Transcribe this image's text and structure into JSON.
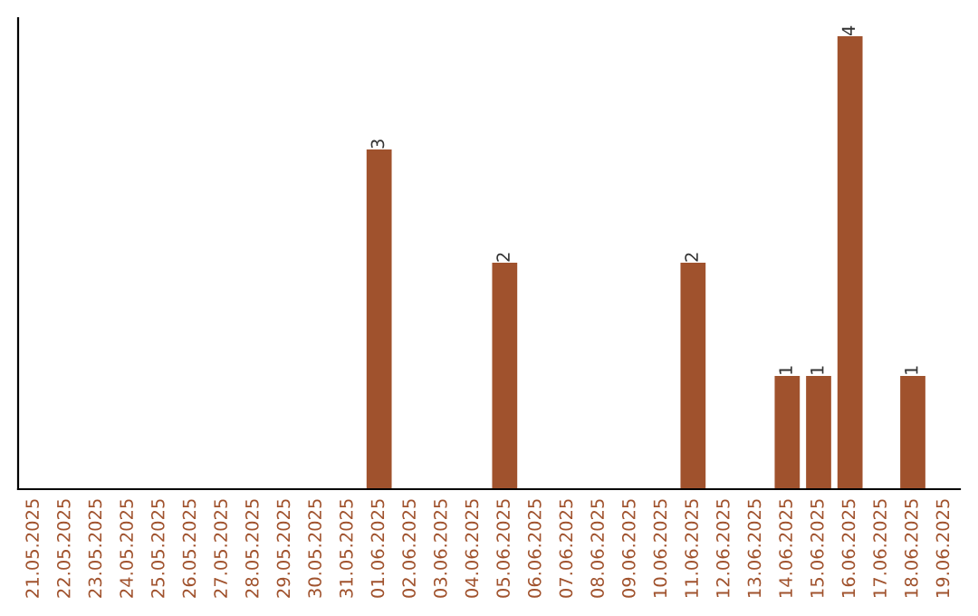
{
  "chart_data": {
    "type": "bar",
    "categories": [
      "21.05.2025",
      "22.05.2025",
      "23.05.2025",
      "24.05.2025",
      "25.05.2025",
      "26.05.2025",
      "27.05.2025",
      "28.05.2025",
      "29.05.2025",
      "30.05.2025",
      "31.05.2025",
      "01.06.2025",
      "02.06.2025",
      "03.06.2025",
      "04.06.2025",
      "05.06.2025",
      "06.06.2025",
      "07.06.2025",
      "08.06.2025",
      "09.06.2025",
      "10.06.2025",
      "11.06.2025",
      "12.06.2025",
      "13.06.2025",
      "14.06.2025",
      "15.06.2025",
      "16.06.2025",
      "17.06.2025",
      "18.06.2025",
      "19.06.2025"
    ],
    "values": [
      0,
      0,
      0,
      0,
      0,
      0,
      0,
      0,
      0,
      0,
      0,
      3,
      0,
      0,
      0,
      2,
      0,
      0,
      0,
      0,
      0,
      2,
      0,
      0,
      1,
      1,
      4,
      0,
      1,
      0
    ],
    "value_labels": [
      null,
      null,
      null,
      null,
      null,
      null,
      null,
      null,
      null,
      null,
      null,
      "3",
      null,
      null,
      null,
      "2",
      null,
      null,
      null,
      null,
      null,
      "2",
      null,
      null,
      "1",
      "1",
      "4",
      null,
      "1",
      null
    ],
    "color": "#a0522d",
    "tick_labels": "x",
    "grid": false,
    "legend": false
  }
}
